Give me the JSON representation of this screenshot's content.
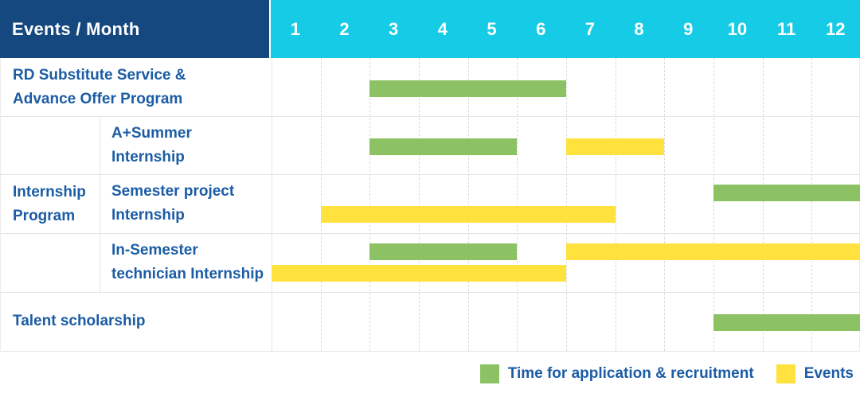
{
  "header": {
    "title": "Events / Month",
    "months": [
      "1",
      "2",
      "3",
      "4",
      "5",
      "6",
      "7",
      "8",
      "9",
      "10",
      "11",
      "12"
    ]
  },
  "colors": {
    "navy": "#15487E",
    "cyan": "#16CBE6",
    "green": "#8CC263",
    "yellow": "#FFE23D",
    "label_blue": "#1B5CA5",
    "grid_line": "#E4E4E4",
    "column_dash": "#DCDCDC",
    "header_text": "#FFFFFF"
  },
  "chart_data": {
    "type": "gantt",
    "unit": "month",
    "x_range": [
      1,
      12
    ],
    "group_label": "Internship\nProgram",
    "legend": [
      {
        "series": "application",
        "label": "Time for application & recruitment"
      },
      {
        "series": "events",
        "label": "Events"
      }
    ],
    "series_colors": {
      "application": "#8CC263",
      "events": "#FFE23D"
    },
    "rows": [
      {
        "label": "RD Substitute Service &\nAdvance Offer Program",
        "group": null,
        "lanes": [
          [
            {
              "series": "application",
              "start_month": 3,
              "end_month": 6
            }
          ]
        ]
      },
      {
        "label": "A+Summer\nInternship",
        "group": "Internship Program",
        "lanes": [
          [
            {
              "series": "application",
              "start_month": 3,
              "end_month": 5
            },
            {
              "series": "events",
              "start_month": 7,
              "end_month": 8
            }
          ]
        ]
      },
      {
        "label": "Semester project\nInternship",
        "group": "Internship Program",
        "lanes": [
          [
            {
              "series": "application",
              "start_month": 10,
              "end_month": 12
            }
          ],
          [
            {
              "series": "events",
              "start_month": 2,
              "end_month": 7
            }
          ]
        ]
      },
      {
        "label": "In-Semester\ntechnician Internship",
        "group": "Internship Program",
        "lanes": [
          [
            {
              "series": "application",
              "start_month": 3,
              "end_month": 5
            },
            {
              "series": "events",
              "start_month": 7,
              "end_month": 12
            }
          ],
          [
            {
              "series": "events",
              "start_month": 1,
              "end_month": 6
            }
          ]
        ]
      },
      {
        "label": "Talent scholarship",
        "group": null,
        "lanes": [
          [
            {
              "series": "application",
              "start_month": 10,
              "end_month": 12
            }
          ]
        ]
      }
    ]
  }
}
